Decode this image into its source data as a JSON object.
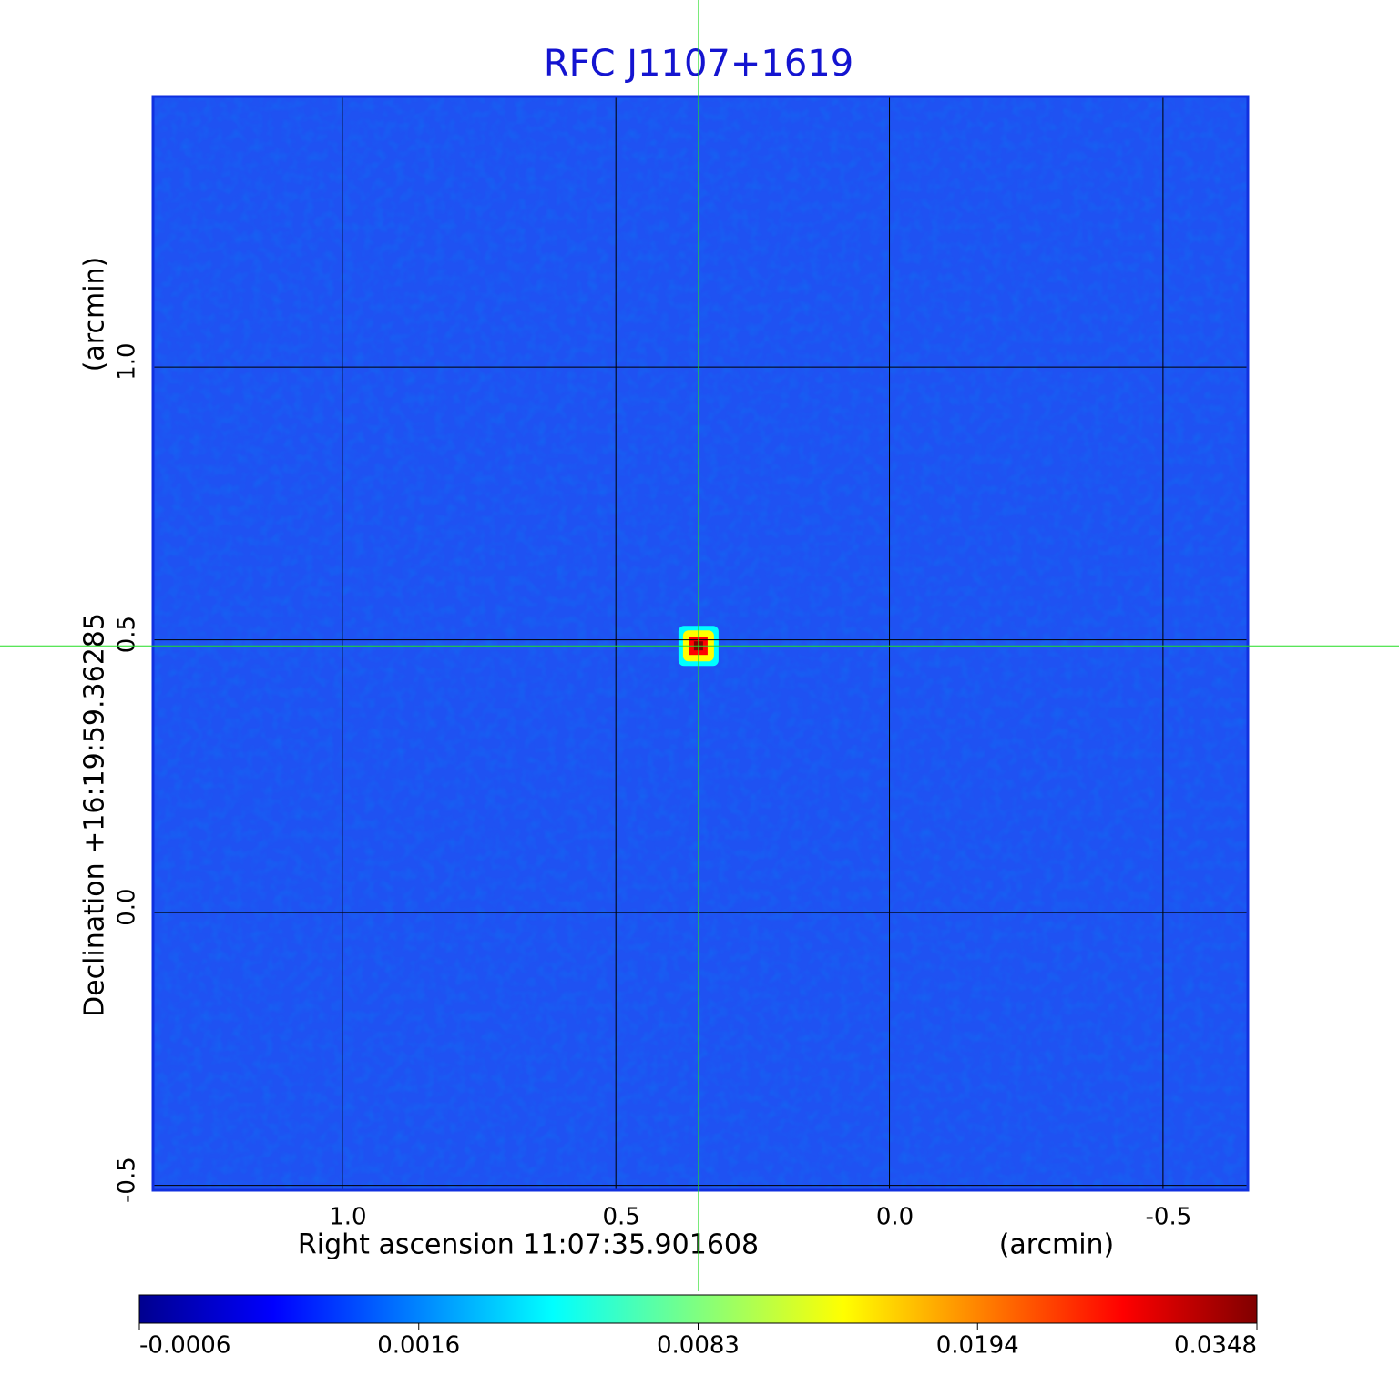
{
  "chart_data": {
    "type": "image",
    "title": "RFC J1107+1619",
    "xlabel": "Right ascension  11:07:35.901608",
    "xunit": "(arcmin)",
    "ylabel": "Declination  +16:19:59.36285",
    "yunit": "(arcmin)",
    "xlim": [
      1.346,
      -0.655
    ],
    "xticks": [
      {
        "value": 1,
        "label": "1.0"
      },
      0.5,
      {
        "value": 0,
        "label": "0.0"
      },
      -0.5
    ],
    "ylim": [
      -0.509,
      1.496
    ],
    "yticks": [
      -0.5,
      {
        "value": 0,
        "label": "0.0"
      },
      0.5,
      {
        "value": 1,
        "label": "1.0"
      }
    ],
    "grid": true,
    "image_color": "#1f52f2",
    "crosshair": {
      "x": 0.349,
      "y": 0.489,
      "color": "#22dd22"
    },
    "source": {
      "x": 0.349,
      "y": 0.489,
      "peak": 0.0348
    },
    "colormap": [
      "#00008f",
      "#0000ff",
      "#00ffff",
      "#ffff00",
      "#ff0000",
      "#800000"
    ],
    "colorbar_ticks": [
      -0.0006,
      0.0016,
      0.0083,
      0.0194,
      0.0348
    ]
  }
}
